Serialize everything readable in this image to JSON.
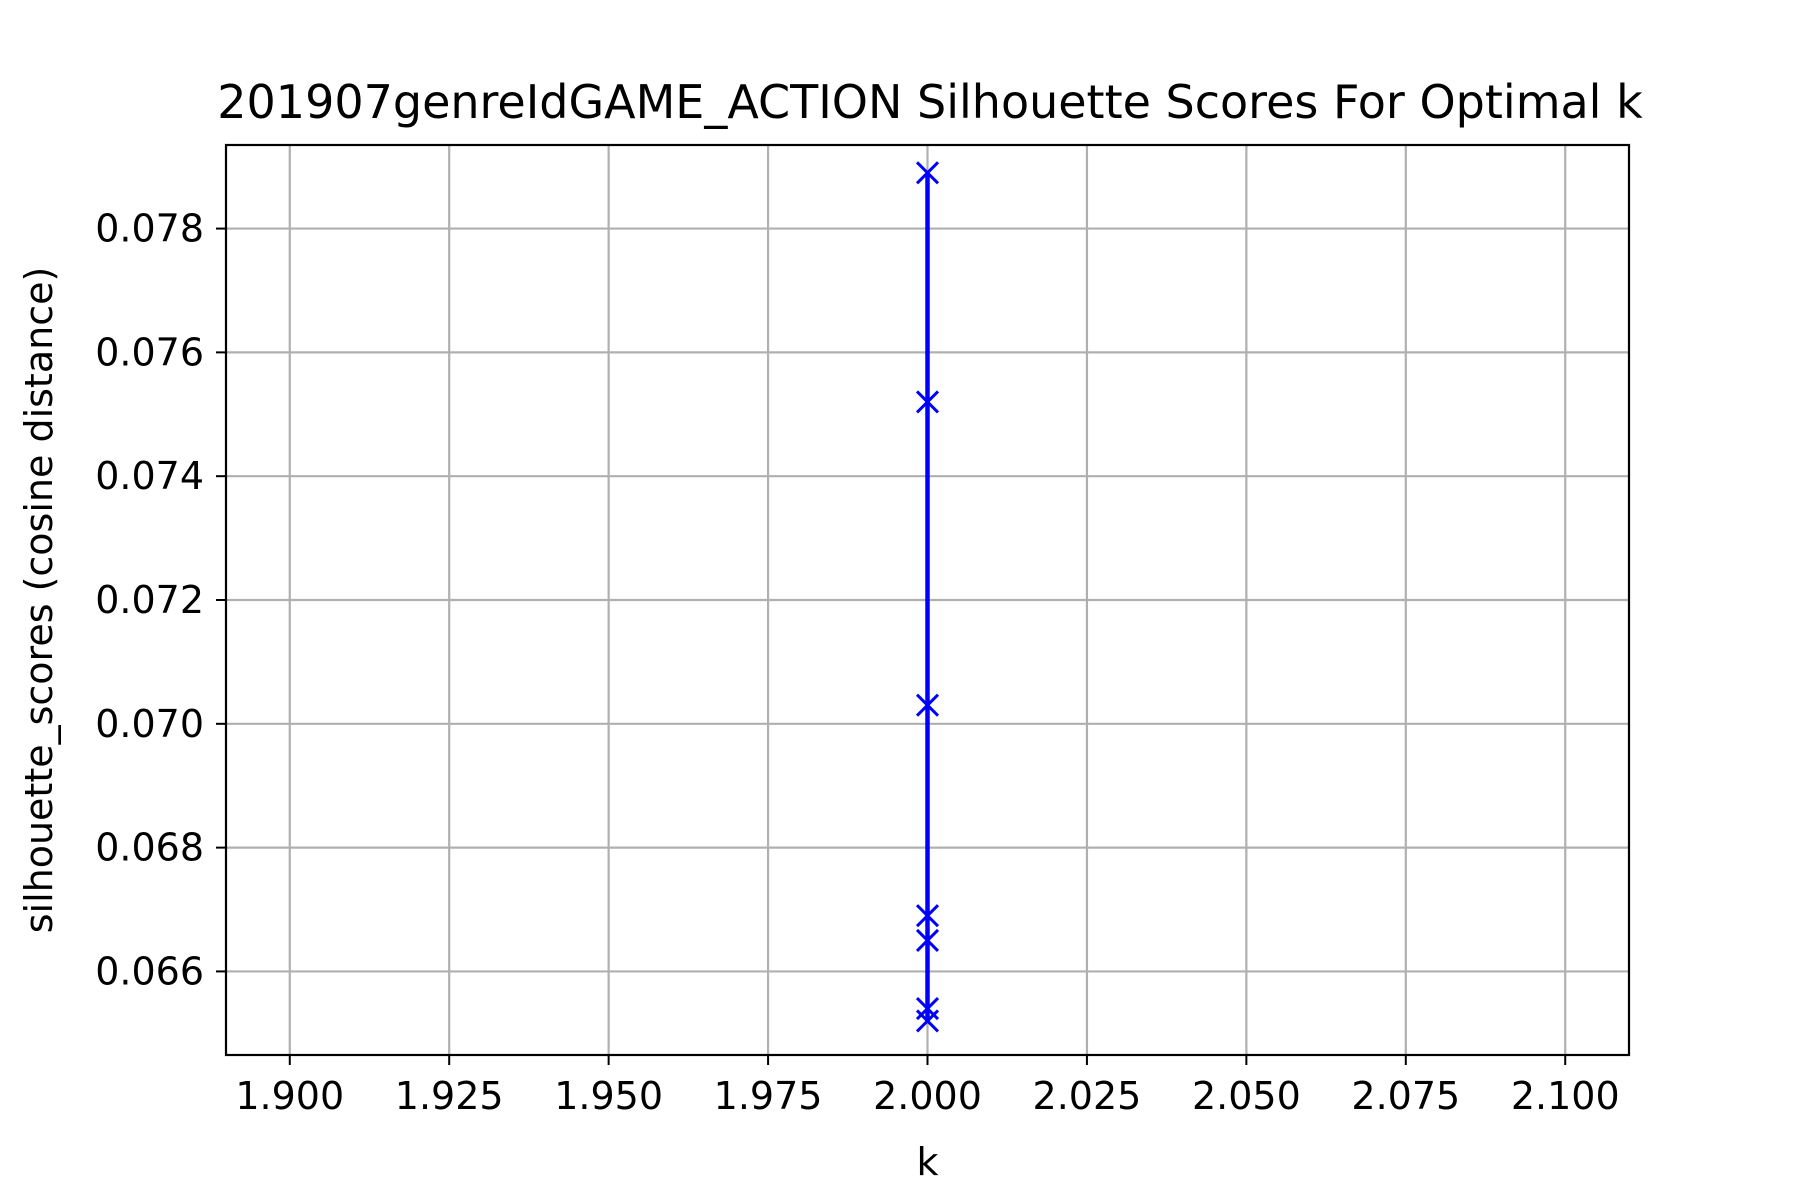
{
  "chart_data": {
    "type": "line",
    "title": "201907genreIdGAME_ACTION Silhouette Scores For Optimal k",
    "xlabel": "k",
    "ylabel": "silhouette_scores (cosine distance)",
    "xlim": [
      1.89,
      2.11
    ],
    "ylim": [
      0.06465,
      0.07935
    ],
    "grid": true,
    "line_color": "#0000ff",
    "marker": "x",
    "x_ticks": [
      "1.900",
      "1.925",
      "1.950",
      "1.975",
      "2.000",
      "2.025",
      "2.050",
      "2.075",
      "2.100"
    ],
    "y_ticks": [
      "0.066",
      "0.068",
      "0.070",
      "0.072",
      "0.074",
      "0.076",
      "0.078"
    ],
    "series": [
      {
        "x": [
          2.0,
          2.0,
          2.0,
          2.0,
          2.0,
          2.0,
          2.0
        ],
        "values": [
          0.0789,
          0.0752,
          0.0703,
          0.0669,
          0.0665,
          0.0654,
          0.0652
        ]
      }
    ]
  }
}
